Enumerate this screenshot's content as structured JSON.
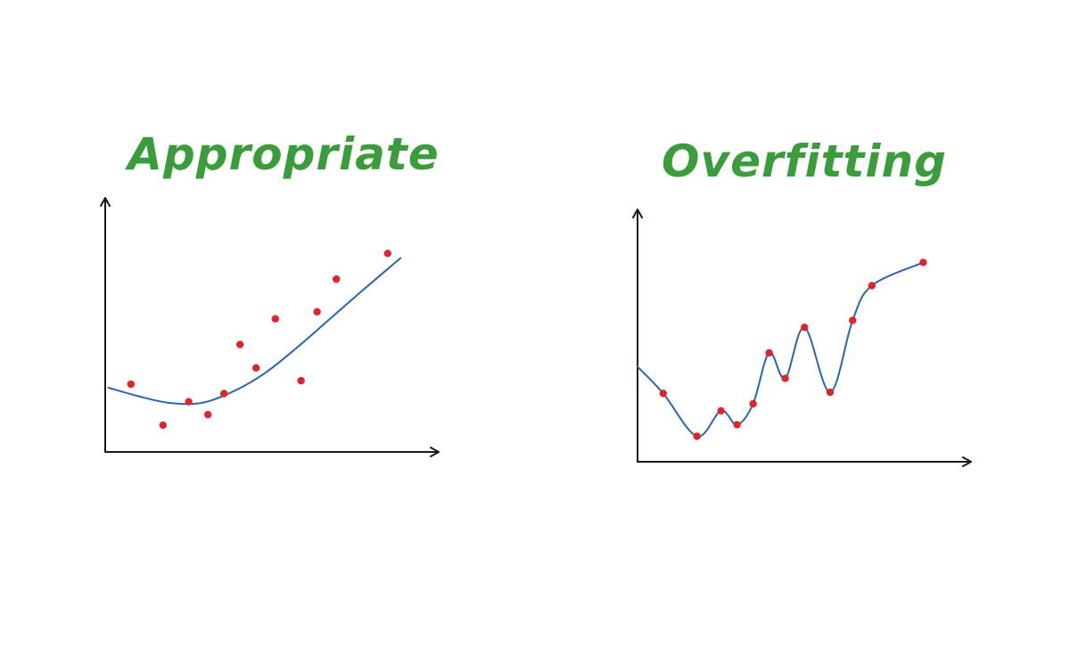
{
  "colors": {
    "title": "#3a9c3a",
    "points": "#e0242c",
    "curve": "#2a64b4",
    "axis": "#1a1a1a",
    "background": "#ffffff"
  },
  "chart_data": [
    {
      "type": "scatter",
      "title": "Appropriate",
      "xlabel": "",
      "ylabel": "",
      "xlim": [
        0,
        10
      ],
      "ylim": [
        0,
        10
      ],
      "grid": false,
      "points": [
        {
          "x": 0.8,
          "y": 2.9
        },
        {
          "x": 1.8,
          "y": 1.15
        },
        {
          "x": 2.6,
          "y": 2.15
        },
        {
          "x": 3.2,
          "y": 1.6
        },
        {
          "x": 3.7,
          "y": 2.5
        },
        {
          "x": 4.2,
          "y": 4.6
        },
        {
          "x": 4.7,
          "y": 3.6
        },
        {
          "x": 5.3,
          "y": 5.7
        },
        {
          "x": 6.1,
          "y": 3.05
        },
        {
          "x": 6.6,
          "y": 6.0
        },
        {
          "x": 7.2,
          "y": 7.4
        },
        {
          "x": 8.8,
          "y": 8.5
        }
      ],
      "fit": {
        "kind": "smooth-trend",
        "x": [
          0.1,
          1.0,
          2.0,
          3.0,
          4.0,
          5.0,
          6.0,
          7.0,
          8.0,
          9.2
        ],
        "y": [
          2.75,
          2.4,
          2.1,
          2.1,
          2.6,
          3.4,
          4.5,
          5.7,
          6.9,
          8.3
        ]
      }
    },
    {
      "type": "scatter",
      "title": "Overfitting",
      "xlabel": "",
      "ylabel": "",
      "xlim": [
        0,
        10
      ],
      "ylim": [
        0,
        10
      ],
      "grid": false,
      "points": [
        {
          "x": 0.8,
          "y": 2.95
        },
        {
          "x": 1.85,
          "y": 1.1
        },
        {
          "x": 2.6,
          "y": 2.2
        },
        {
          "x": 3.1,
          "y": 1.6
        },
        {
          "x": 3.6,
          "y": 2.5
        },
        {
          "x": 4.1,
          "y": 4.7
        },
        {
          "x": 4.6,
          "y": 3.6
        },
        {
          "x": 5.2,
          "y": 5.8
        },
        {
          "x": 6.0,
          "y": 3.0
        },
        {
          "x": 6.7,
          "y": 6.1
        },
        {
          "x": 7.3,
          "y": 7.6
        },
        {
          "x": 8.9,
          "y": 8.6
        }
      ],
      "fit": {
        "kind": "interpolating-spline",
        "x": [
          0.0,
          0.8,
          1.85,
          2.6,
          3.1,
          3.6,
          4.1,
          4.6,
          5.2,
          6.0,
          6.7,
          7.3,
          8.9
        ],
        "y": [
          4.1,
          2.95,
          1.1,
          2.2,
          1.6,
          2.5,
          4.7,
          3.6,
          5.8,
          3.0,
          6.1,
          7.6,
          8.6
        ]
      }
    }
  ]
}
